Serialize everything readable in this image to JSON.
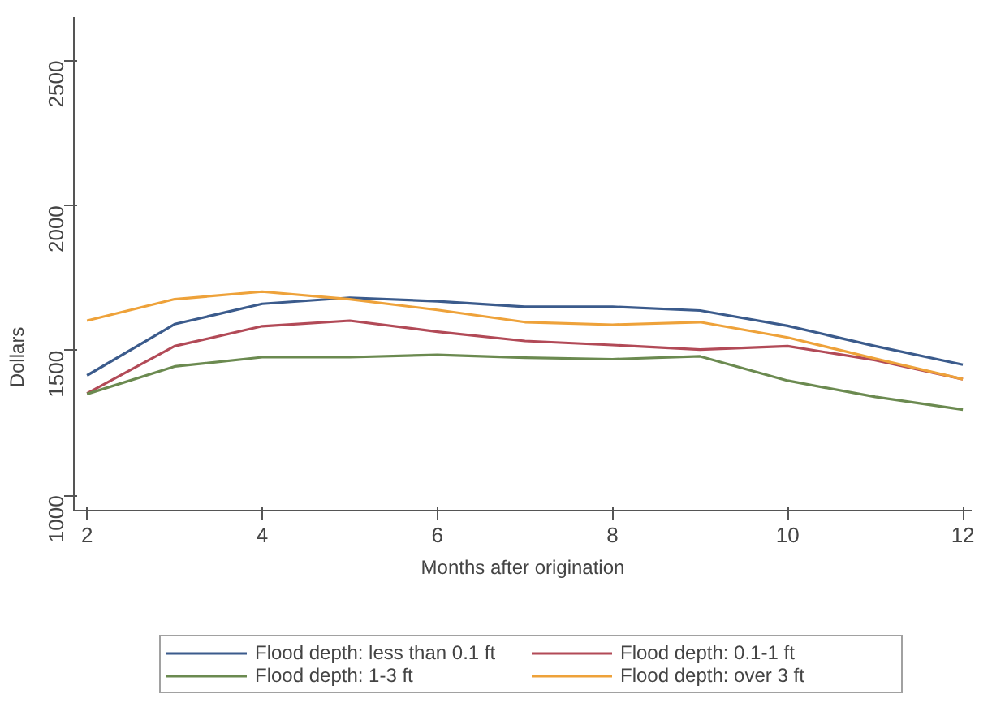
{
  "chart_data": {
    "type": "line",
    "xlabel": "Months after origination",
    "ylabel": "Dollars",
    "x": [
      2,
      3,
      4,
      5,
      6,
      7,
      8,
      9,
      10,
      11,
      12
    ],
    "xlim": [
      1.85,
      12.1
    ],
    "xticks": [
      2,
      4,
      6,
      8,
      10,
      12
    ],
    "ylim": [
      950,
      2650
    ],
    "yticks": [
      1000,
      1500,
      2000,
      2500
    ],
    "grid": false,
    "legend": "bottom",
    "line_style": "solid",
    "series": [
      {
        "name": "Flood depth: less than 0.1 ft",
        "color": "#3b5b8c",
        "values": [
          1414,
          1591,
          1661,
          1682,
          1670,
          1651,
          1651,
          1638,
          1585,
          1515,
          1451
        ]
      },
      {
        "name": "Flood depth: 0.1-1 ft",
        "color": "#b24a57",
        "values": [
          1352,
          1515,
          1584,
          1603,
          1565,
          1533,
          1519,
          1503,
          1515,
          1467,
          1401
        ]
      },
      {
        "name": "Flood depth: 1-3 ft",
        "color": "#6b8a50",
        "values": [
          1350,
          1445,
          1477,
          1477,
          1485,
          1475,
          1470,
          1480,
          1396,
          1340,
          1296
        ]
      },
      {
        "name": "Flood depth: over 3 ft",
        "color": "#eea23a",
        "values": [
          1603,
          1677,
          1703,
          1677,
          1640,
          1598,
          1589,
          1598,
          1545,
          1472,
          1401
        ]
      }
    ]
  }
}
